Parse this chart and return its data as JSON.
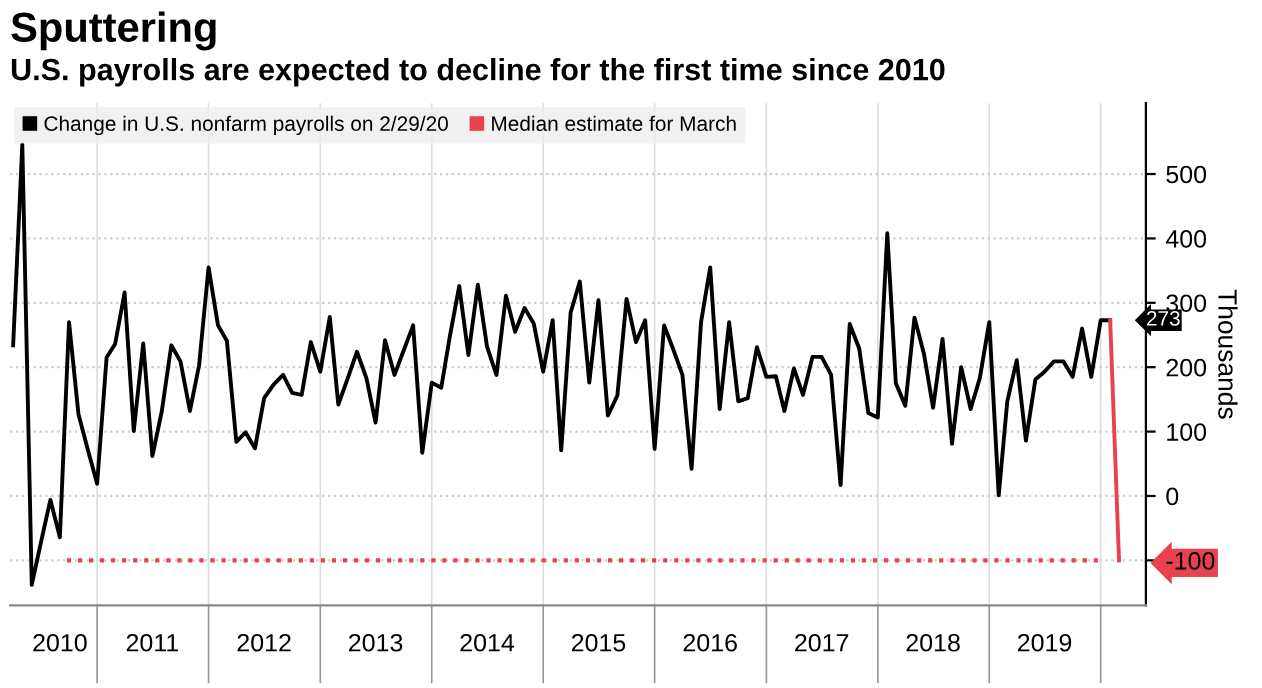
{
  "chart_data": {
    "type": "line",
    "title": "Sputtering",
    "subtitle": "U.S. payrolls are expected to decline for the first time since 2010",
    "ylabel": "Thousands",
    "series": [
      {
        "name": "Change in U.S. nonfarm payrolls on 2/29/20",
        "color": "#000000",
        "x": [
          "2010-04",
          "2010-05",
          "2010-06",
          "2010-07",
          "2010-08",
          "2010-09",
          "2010-10",
          "2010-11",
          "2010-12",
          "2011-01",
          "2011-02",
          "2011-03",
          "2011-04",
          "2011-05",
          "2011-06",
          "2011-07",
          "2011-08",
          "2011-09",
          "2011-10",
          "2011-11",
          "2011-12",
          "2012-01",
          "2012-02",
          "2012-03",
          "2012-04",
          "2012-05",
          "2012-06",
          "2012-07",
          "2012-08",
          "2012-09",
          "2012-10",
          "2012-11",
          "2012-12",
          "2013-01",
          "2013-02",
          "2013-03",
          "2013-04",
          "2013-05",
          "2013-06",
          "2013-07",
          "2013-08",
          "2013-09",
          "2013-10",
          "2013-11",
          "2013-12",
          "2014-01",
          "2014-02",
          "2014-03",
          "2014-04",
          "2014-05",
          "2014-06",
          "2014-07",
          "2014-08",
          "2014-09",
          "2014-10",
          "2014-11",
          "2014-12",
          "2015-01",
          "2015-02",
          "2015-03",
          "2015-04",
          "2015-05",
          "2015-06",
          "2015-07",
          "2015-08",
          "2015-09",
          "2015-10",
          "2015-11",
          "2015-12",
          "2016-01",
          "2016-02",
          "2016-03",
          "2016-04",
          "2016-05",
          "2016-06",
          "2016-07",
          "2016-08",
          "2016-09",
          "2016-10",
          "2016-11",
          "2016-12",
          "2017-01",
          "2017-02",
          "2017-03",
          "2017-04",
          "2017-05",
          "2017-06",
          "2017-07",
          "2017-08",
          "2017-09",
          "2017-10",
          "2017-11",
          "2017-12",
          "2018-01",
          "2018-02",
          "2018-03",
          "2018-04",
          "2018-05",
          "2018-06",
          "2018-07",
          "2018-08",
          "2018-09",
          "2018-10",
          "2018-11",
          "2018-12",
          "2019-01",
          "2019-02",
          "2019-03",
          "2019-04",
          "2019-05",
          "2019-06",
          "2019-07",
          "2019-08",
          "2019-09",
          "2019-10",
          "2019-11",
          "2019-12",
          "2020-01",
          "2020-02"
        ],
        "values": [
          234,
          546,
          -138,
          -72,
          -6,
          -64,
          270,
          127,
          73,
          19,
          215,
          236,
          316,
          101,
          237,
          62,
          132,
          234,
          209,
          132,
          203,
          355,
          265,
          241,
          84,
          99,
          74,
          152,
          173,
          188,
          160,
          157,
          239,
          193,
          278,
          142,
          183,
          224,
          183,
          114,
          242,
          188,
          226,
          265,
          67,
          176,
          168,
          247,
          326,
          219,
          328,
          232,
          188,
          311,
          255,
          292,
          268,
          193,
          273,
          71,
          285,
          333,
          176,
          304,
          125,
          156,
          306,
          239,
          273,
          73,
          265,
          229,
          188,
          42,
          270,
          355,
          135,
          270,
          147,
          152,
          231,
          185,
          186,
          132,
          198,
          157,
          216,
          216,
          188,
          17,
          267,
          229,
          129,
          122,
          408,
          175,
          140,
          277,
          221,
          137,
          244,
          81,
          200,
          135,
          183,
          270,
          1,
          147,
          211,
          86,
          181,
          193,
          209,
          209,
          185,
          260,
          185,
          273,
          273
        ]
      },
      {
        "name": "Median estimate for March",
        "color": "#e8414f",
        "x": [
          "2020-02",
          "2020-03"
        ],
        "values": [
          273,
          -100
        ]
      }
    ],
    "annotations": [
      {
        "text": "273",
        "x": "2020-02",
        "y": 273
      }
    ],
    "ref_lines": [
      {
        "axis": "y",
        "value": -100,
        "color": "#e8414f",
        "line_style": "dotted"
      }
    ],
    "xlim": [
      "2010-03-22",
      "2020-05-28"
    ],
    "xticks": [
      {
        "value": "2010-09-01",
        "label": "2010"
      },
      {
        "value": "2011-07-01",
        "label": "2011"
      },
      {
        "value": "2012-07-01",
        "label": "2012"
      },
      {
        "value": "2013-07-01",
        "label": "2013"
      },
      {
        "value": "2014-07-01",
        "label": "2014"
      },
      {
        "value": "2015-07-01",
        "label": "2015"
      },
      {
        "value": "2016-07-01",
        "label": "2016"
      },
      {
        "value": "2017-07-01",
        "label": "2017"
      },
      {
        "value": "2018-07-01",
        "label": "2018"
      },
      {
        "value": "2019-07-01",
        "label": "2019"
      },
      {
        "value": "2011-01-01",
        "label": null
      },
      {
        "value": "2012-01-01",
        "label": null
      },
      {
        "value": "2013-01-01",
        "label": null
      },
      {
        "value": "2014-01-01",
        "label": null
      },
      {
        "value": "2015-01-01",
        "label": null
      },
      {
        "value": "2016-01-01",
        "label": null
      },
      {
        "value": "2017-01-01",
        "label": null
      },
      {
        "value": "2018-01-01",
        "label": null
      },
      {
        "value": "2019-01-01",
        "label": null
      },
      {
        "value": "2020-01-01",
        "label": null
      }
    ],
    "ylim": [
      -170,
      610
    ],
    "yticks": [
      -100,
      0,
      100,
      200,
      300,
      400,
      500
    ],
    "grid": true,
    "legend": "top left",
    "marker": "none",
    "line_style": "solid"
  }
}
